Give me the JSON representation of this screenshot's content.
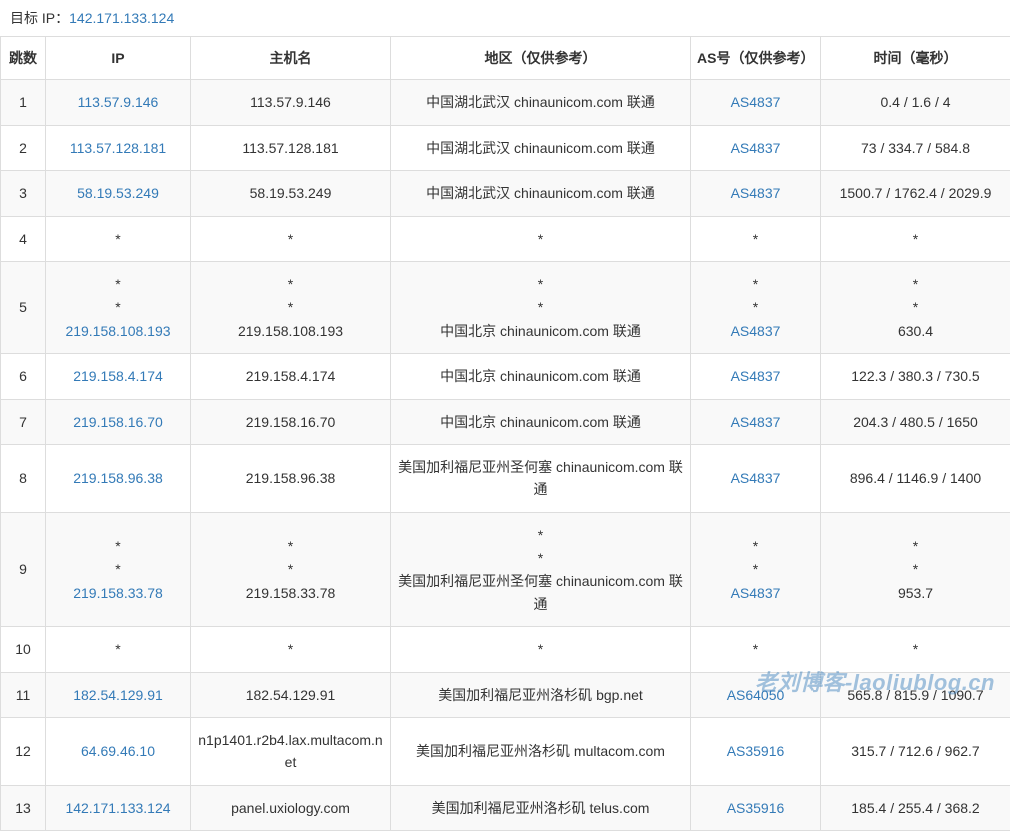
{
  "target_label": "目标 IP：",
  "target_ip": "142.171.133.124",
  "headers": {
    "hop": "跳数",
    "ip": "IP",
    "host": "主机名",
    "region": "地区（仅供参考）",
    "asn": "AS号（仅供参考）",
    "time": "时间（毫秒）"
  },
  "rows": [
    {
      "hop": "1",
      "ip": [
        "113.57.9.146"
      ],
      "ip_link": [
        true
      ],
      "host": [
        "113.57.9.146"
      ],
      "region": [
        "中国湖北武汉 chinaunicom.com 联通"
      ],
      "asn": [
        "AS4837"
      ],
      "asn_link": [
        true
      ],
      "time": [
        "0.4 / 1.6 / 4"
      ]
    },
    {
      "hop": "2",
      "ip": [
        "113.57.128.181"
      ],
      "ip_link": [
        true
      ],
      "host": [
        "113.57.128.181"
      ],
      "region": [
        "中国湖北武汉 chinaunicom.com 联通"
      ],
      "asn": [
        "AS4837"
      ],
      "asn_link": [
        true
      ],
      "time": [
        "73 / 334.7 / 584.8"
      ]
    },
    {
      "hop": "3",
      "ip": [
        "58.19.53.249"
      ],
      "ip_link": [
        true
      ],
      "host": [
        "58.19.53.249"
      ],
      "region": [
        "中国湖北武汉 chinaunicom.com 联通"
      ],
      "asn": [
        "AS4837"
      ],
      "asn_link": [
        true
      ],
      "time": [
        "1500.7 / 1762.4 / 2029.9"
      ]
    },
    {
      "hop": "4",
      "ip": [
        "*"
      ],
      "ip_link": [
        false
      ],
      "host": [
        "*"
      ],
      "region": [
        "*"
      ],
      "asn": [
        "*"
      ],
      "asn_link": [
        false
      ],
      "time": [
        "*"
      ]
    },
    {
      "hop": "5",
      "ip": [
        "*",
        "*",
        "219.158.108.193"
      ],
      "ip_link": [
        false,
        false,
        true
      ],
      "host": [
        "*",
        "*",
        "219.158.108.193"
      ],
      "region": [
        "*",
        "*",
        "中国北京 chinaunicom.com 联通"
      ],
      "asn": [
        "*",
        "*",
        "AS4837"
      ],
      "asn_link": [
        false,
        false,
        true
      ],
      "time": [
        "*",
        "*",
        "630.4"
      ]
    },
    {
      "hop": "6",
      "ip": [
        "219.158.4.174"
      ],
      "ip_link": [
        true
      ],
      "host": [
        "219.158.4.174"
      ],
      "region": [
        "中国北京 chinaunicom.com 联通"
      ],
      "asn": [
        "AS4837"
      ],
      "asn_link": [
        true
      ],
      "time": [
        "122.3 / 380.3 / 730.5"
      ]
    },
    {
      "hop": "7",
      "ip": [
        "219.158.16.70"
      ],
      "ip_link": [
        true
      ],
      "host": [
        "219.158.16.70"
      ],
      "region": [
        "中国北京 chinaunicom.com 联通"
      ],
      "asn": [
        "AS4837"
      ],
      "asn_link": [
        true
      ],
      "time": [
        "204.3 / 480.5 / 1650"
      ]
    },
    {
      "hop": "8",
      "ip": [
        "219.158.96.38"
      ],
      "ip_link": [
        true
      ],
      "host": [
        "219.158.96.38"
      ],
      "region": [
        "美国加利福尼亚州圣何塞 chinaunicom.com 联通"
      ],
      "asn": [
        "AS4837"
      ],
      "asn_link": [
        true
      ],
      "time": [
        "896.4 / 1146.9 / 1400"
      ]
    },
    {
      "hop": "9",
      "ip": [
        "*",
        "*",
        "219.158.33.78"
      ],
      "ip_link": [
        false,
        false,
        true
      ],
      "host": [
        "*",
        "*",
        "219.158.33.78"
      ],
      "region": [
        "*",
        "*",
        "美国加利福尼亚州圣何塞 chinaunicom.com 联通"
      ],
      "asn": [
        "*",
        "*",
        "AS4837"
      ],
      "asn_link": [
        false,
        false,
        true
      ],
      "time": [
        "*",
        "*",
        "953.7"
      ]
    },
    {
      "hop": "10",
      "ip": [
        "*"
      ],
      "ip_link": [
        false
      ],
      "host": [
        "*"
      ],
      "region": [
        "*"
      ],
      "asn": [
        "*"
      ],
      "asn_link": [
        false
      ],
      "time": [
        "*"
      ]
    },
    {
      "hop": "11",
      "ip": [
        "182.54.129.91"
      ],
      "ip_link": [
        true
      ],
      "host": [
        "182.54.129.91"
      ],
      "region": [
        "美国加利福尼亚州洛杉矶 bgp.net"
      ],
      "asn": [
        "AS64050"
      ],
      "asn_link": [
        true
      ],
      "time": [
        "565.8 / 815.9 / 1090.7"
      ]
    },
    {
      "hop": "12",
      "ip": [
        "64.69.46.10"
      ],
      "ip_link": [
        true
      ],
      "host": [
        "n1p1401.r2b4.lax.multacom.net"
      ],
      "region": [
        "美国加利福尼亚州洛杉矶 multacom.com"
      ],
      "asn": [
        "AS35916"
      ],
      "asn_link": [
        true
      ],
      "time": [
        "315.7 / 712.6 / 962.7"
      ]
    },
    {
      "hop": "13",
      "ip": [
        "142.171.133.124"
      ],
      "ip_link": [
        true
      ],
      "host": [
        "panel.uxiology.com"
      ],
      "region": [
        "美国加利福尼亚州洛杉矶 telus.com"
      ],
      "asn": [
        "AS35916"
      ],
      "asn_link": [
        true
      ],
      "time": [
        "185.4 / 255.4 / 368.2"
      ]
    }
  ],
  "watermark": "老刘博客-laoliublog.cn",
  "colors": {
    "link": "#337ab7",
    "border": "#ddd",
    "stripe": "#f9f9f9",
    "text": "#333"
  }
}
